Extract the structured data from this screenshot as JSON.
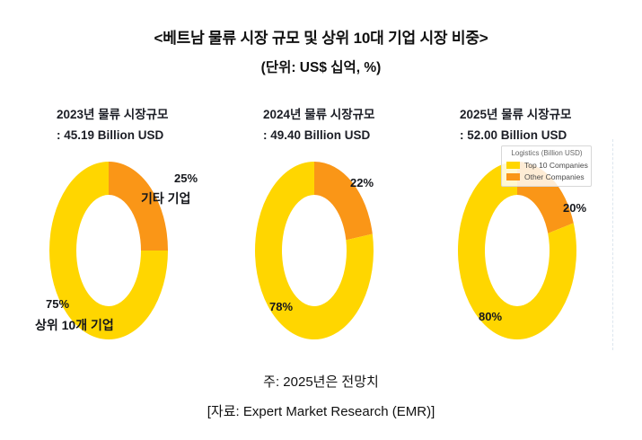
{
  "header": {
    "title": "<베트남 물류 시장 규모 및 상위 10대 기업 시장 비중>",
    "subtitle": "(단위: US$ 십억, %)"
  },
  "colors": {
    "top10": "#FFD600",
    "other": "#FA9617"
  },
  "legend": {
    "title": "Logistics (Billion USD)",
    "entries": [
      {
        "label": "Top 10 Companies",
        "color": "#FFD600"
      },
      {
        "label": "Other Companies",
        "color": "#FA9617"
      }
    ]
  },
  "chart_data": [
    {
      "type": "pie",
      "subtype": "donut",
      "title_line1": "2023년 물류 시장규모",
      "title_line2": ": 45.19 Billion USD",
      "market_size_billion_usd": 45.19,
      "categories": [
        "Top 10 Companies",
        "Other Companies"
      ],
      "values": [
        75,
        25
      ],
      "slice_labels": {
        "top10_pct": "75%",
        "top10_name": "상위 10개 기업",
        "other_pct": "25%",
        "other_name": "기타 기업"
      }
    },
    {
      "type": "pie",
      "subtype": "donut",
      "title_line1": "2024년 물류 시장규모",
      "title_line2": ": 49.40 Billion USD",
      "market_size_billion_usd": 49.4,
      "categories": [
        "Top 10 Companies",
        "Other Companies"
      ],
      "values": [
        78,
        22
      ],
      "slice_labels": {
        "top10_pct": "78%",
        "other_pct": "22%"
      }
    },
    {
      "type": "pie",
      "subtype": "donut",
      "title_line1": "2025년 물류 시장규모",
      "title_line2": ": 52.00 Billion USD",
      "market_size_billion_usd": 52.0,
      "categories": [
        "Top 10 Companies",
        "Other Companies"
      ],
      "values": [
        80,
        20
      ],
      "slice_labels": {
        "top10_pct": "80%",
        "other_pct": "20%"
      }
    }
  ],
  "footer": {
    "note": "주: 2025년은 전망치",
    "source": "[자료: Expert Market Research (EMR)]"
  }
}
